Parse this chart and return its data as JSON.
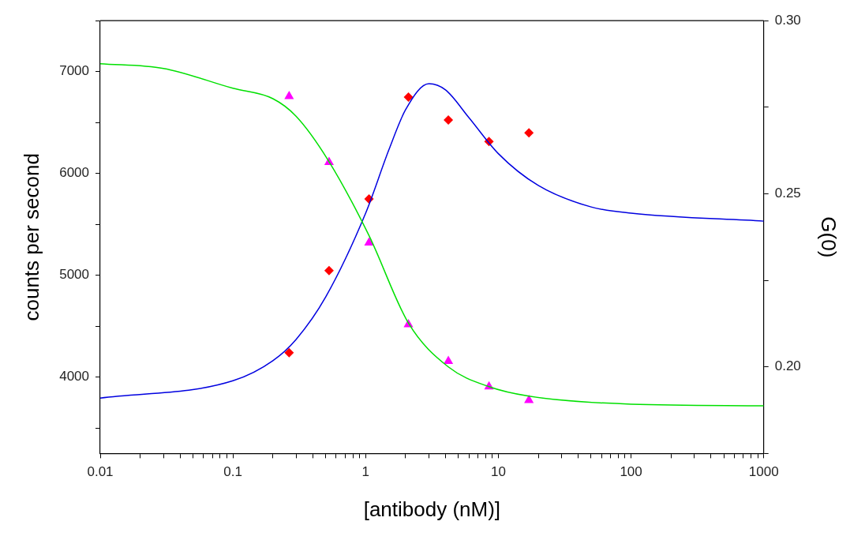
{
  "chart_data": {
    "type": "scatter",
    "xlabel": "[antibody (nM)]",
    "ylabel": "counts per second",
    "y2label": "G(0)",
    "log": "x",
    "grid": false,
    "legend": false,
    "xlim": [
      0.01,
      1000
    ],
    "xticks": [
      0.01,
      {
        "value": 0.02,
        "label": null
      },
      {
        "value": 0.03,
        "label": null
      },
      {
        "value": 0.04,
        "label": null
      },
      {
        "value": 0.05,
        "label": null
      },
      {
        "value": 0.06,
        "label": null
      },
      {
        "value": 0.07,
        "label": null
      },
      {
        "value": 0.08,
        "label": null
      },
      {
        "value": 0.09,
        "label": null
      },
      0.1,
      {
        "value": 0.2,
        "label": null
      },
      {
        "value": 0.3,
        "label": null
      },
      {
        "value": 0.4,
        "label": null
      },
      {
        "value": 0.5,
        "label": null
      },
      {
        "value": 0.6,
        "label": null
      },
      {
        "value": 0.7,
        "label": null
      },
      {
        "value": 0.8,
        "label": null
      },
      {
        "value": 0.9,
        "label": null
      },
      1,
      {
        "value": 2,
        "label": null
      },
      {
        "value": 3,
        "label": null
      },
      {
        "value": 4,
        "label": null
      },
      {
        "value": 5,
        "label": null
      },
      {
        "value": 6,
        "label": null
      },
      {
        "value": 7,
        "label": null
      },
      {
        "value": 8,
        "label": null
      },
      {
        "value": 9,
        "label": null
      },
      10,
      {
        "value": 20,
        "label": null
      },
      {
        "value": 30,
        "label": null
      },
      {
        "value": 40,
        "label": null
      },
      {
        "value": 50,
        "label": null
      },
      {
        "value": 60,
        "label": null
      },
      {
        "value": 70,
        "label": null
      },
      {
        "value": 80,
        "label": null
      },
      {
        "value": 90,
        "label": null
      },
      100,
      {
        "value": 200,
        "label": null
      },
      {
        "value": 300,
        "label": null
      },
      {
        "value": 400,
        "label": null
      },
      {
        "value": 500,
        "label": null
      },
      {
        "value": 600,
        "label": null
      },
      {
        "value": 700,
        "label": null
      },
      {
        "value": 800,
        "label": null
      },
      {
        "value": 900,
        "label": null
      },
      1000
    ],
    "ylim": [
      3250,
      7500
    ],
    "yticks": [
      {
        "value": 3500,
        "label": null
      },
      4000,
      {
        "value": 4500,
        "label": null
      },
      5000,
      {
        "value": 5500,
        "label": null
      },
      6000,
      {
        "value": 6500,
        "label": null
      },
      7000,
      {
        "value": 7500,
        "label": null
      }
    ],
    "y2lim": [
      0.175,
      0.3
    ],
    "y2ticks": [
      {
        "value": 0.175,
        "label": null
      },
      {
        "value": 0.2,
        "label": "0.20"
      },
      {
        "value": 0.225,
        "label": null
      },
      {
        "value": 0.25,
        "label": "0.25"
      },
      {
        "value": 0.275,
        "label": null
      },
      {
        "value": 0.3,
        "label": "0.30"
      }
    ],
    "series": [
      {
        "type": "line",
        "color": "#00e000",
        "marker": "none",
        "axis": "y",
        "x": [
          0.01,
          0.03,
          0.1,
          0.2,
          0.3,
          0.52,
          1.06,
          2.1,
          4.2,
          8.5,
          17,
          100,
          1000
        ],
        "values": [
          7078,
          7031,
          6836,
          6734,
          6560,
          6133,
          5390,
          4531,
          4100,
          3906,
          3813,
          3734,
          3719
        ]
      },
      {
        "type": "line",
        "color": "#0000e0",
        "marker": "none",
        "axis": "y2",
        "x": [
          0.01,
          0.1,
          0.2,
          0.3,
          0.5,
          1,
          1.5,
          2,
          3,
          4,
          6,
          10,
          20,
          50,
          100,
          1000
        ],
        "values": [
          0.191,
          0.196,
          0.2018,
          0.208,
          0.2202,
          0.2444,
          0.2628,
          0.2743,
          0.2818,
          0.28,
          0.272,
          0.2616,
          0.2524,
          0.2462,
          0.2444,
          0.2421
        ]
      },
      {
        "color": "#ff00ff",
        "marker": "triangle",
        "axis": "y",
        "x": [
          0.265,
          0.53,
          1.06,
          2.1,
          4.2,
          8.5,
          17
        ],
        "values": [
          6758,
          6109,
          5320,
          4516,
          4156,
          3906,
          3773
        ]
      },
      {
        "color": "#ff0000",
        "marker": "diamond",
        "axis": "y2",
        "x": [
          0.265,
          0.53,
          1.06,
          2.1,
          4.2,
          8.5,
          17
        ],
        "values": [
          0.2041,
          0.2278,
          0.2485,
          0.2779,
          0.2713,
          0.2651,
          0.2676
        ]
      }
    ]
  }
}
